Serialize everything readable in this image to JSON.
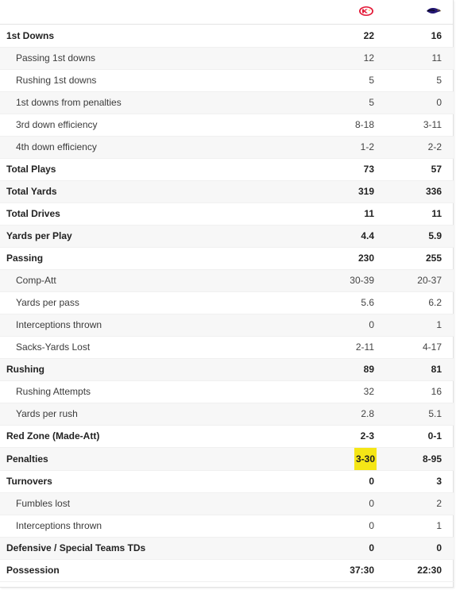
{
  "teams": {
    "home": {
      "icon": "chiefs-logo-icon",
      "color": "#e31837"
    },
    "away": {
      "icon": "ravens-logo-icon",
      "color": "#241773"
    }
  },
  "highlight_color": "#f5e616",
  "rows": [
    {
      "label": "1st Downs",
      "home": "22",
      "away": "16",
      "bold": true
    },
    {
      "label": "Passing 1st downs",
      "home": "12",
      "away": "11",
      "bold": false
    },
    {
      "label": "Rushing 1st downs",
      "home": "5",
      "away": "5",
      "bold": false
    },
    {
      "label": "1st downs from penalties",
      "home": "5",
      "away": "0",
      "bold": false
    },
    {
      "label": "3rd down efficiency",
      "home": "8-18",
      "away": "3-11",
      "bold": false
    },
    {
      "label": "4th down efficiency",
      "home": "1-2",
      "away": "2-2",
      "bold": false
    },
    {
      "label": "Total Plays",
      "home": "73",
      "away": "57",
      "bold": true
    },
    {
      "label": "Total Yards",
      "home": "319",
      "away": "336",
      "bold": true
    },
    {
      "label": "Total Drives",
      "home": "11",
      "away": "11",
      "bold": true
    },
    {
      "label": "Yards per Play",
      "home": "4.4",
      "away": "5.9",
      "bold": true
    },
    {
      "label": "Passing",
      "home": "230",
      "away": "255",
      "bold": true
    },
    {
      "label": "Comp-Att",
      "home": "30-39",
      "away": "20-37",
      "bold": false
    },
    {
      "label": "Yards per pass",
      "home": "5.6",
      "away": "6.2",
      "bold": false
    },
    {
      "label": "Interceptions thrown",
      "home": "0",
      "away": "1",
      "bold": false
    },
    {
      "label": "Sacks-Yards Lost",
      "home": "2-11",
      "away": "4-17",
      "bold": false
    },
    {
      "label": "Rushing",
      "home": "89",
      "away": "81",
      "bold": true
    },
    {
      "label": "Rushing Attempts",
      "home": "32",
      "away": "16",
      "bold": false
    },
    {
      "label": "Yards per rush",
      "home": "2.8",
      "away": "5.1",
      "bold": false
    },
    {
      "label": "Red Zone (Made-Att)",
      "home": "2-3",
      "away": "0-1",
      "bold": true
    },
    {
      "label": "Penalties",
      "home": "3-30",
      "away": "8-95",
      "bold": true,
      "highlight_home": true
    },
    {
      "label": "Turnovers",
      "home": "0",
      "away": "3",
      "bold": true
    },
    {
      "label": "Fumbles lost",
      "home": "0",
      "away": "2",
      "bold": false
    },
    {
      "label": "Interceptions thrown",
      "home": "0",
      "away": "1",
      "bold": false
    },
    {
      "label": "Defensive / Special Teams TDs",
      "home": "0",
      "away": "0",
      "bold": true
    },
    {
      "label": "Possession",
      "home": "37:30",
      "away": "22:30",
      "bold": true
    }
  ]
}
